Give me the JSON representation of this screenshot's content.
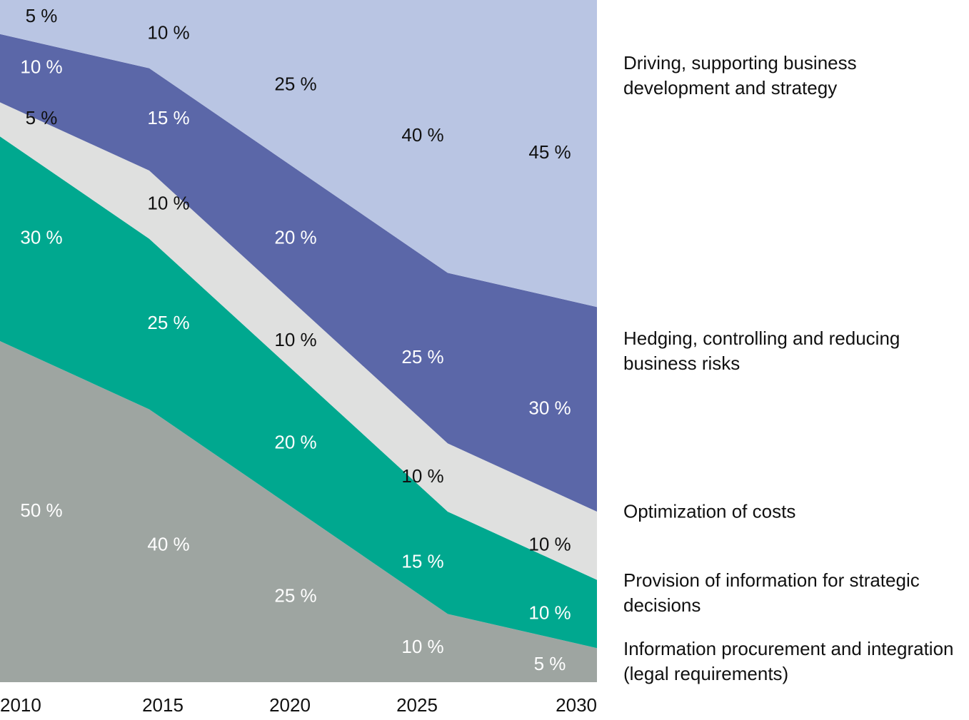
{
  "chart_data": {
    "type": "area",
    "categories": [
      "2010",
      "2015",
      "2020",
      "2025",
      "2030"
    ],
    "ylim": [
      0,
      100
    ],
    "series": [
      {
        "name": "Information procurement and integration (legal requirements)",
        "color": "#9ea5a1",
        "values": [
          50,
          40,
          25,
          10,
          5
        ],
        "value_labels": [
          "50 %",
          "40 %",
          "25 %",
          "10 %",
          "5 %"
        ]
      },
      {
        "name": "Provision of information for strategic decisions",
        "color": "#00a88f",
        "values": [
          30,
          25,
          20,
          15,
          10
        ],
        "value_labels": [
          "30 %",
          "25 %",
          "20 %",
          "15 %",
          "10 %"
        ]
      },
      {
        "name": "Optimization of costs",
        "color": "#dfe0df",
        "values": [
          5,
          10,
          10,
          10,
          10
        ],
        "value_labels": [
          "5 %",
          "10 %",
          "10 %",
          "10 %",
          "10 %"
        ]
      },
      {
        "name": "Hedging, controlling and reducing business risks",
        "color": "#5b67a8",
        "values": [
          10,
          15,
          20,
          25,
          30
        ],
        "value_labels": [
          "10 %",
          "15 %",
          "20 %",
          "25 %",
          "30 %"
        ]
      },
      {
        "name": "Driving, supporting business development and strategy",
        "color": "#b9c5e3",
        "values": [
          5,
          10,
          25,
          40,
          45
        ],
        "value_labels": [
          "5 %",
          "10 %",
          "25 %",
          "40 %",
          "45 %"
        ]
      }
    ]
  }
}
